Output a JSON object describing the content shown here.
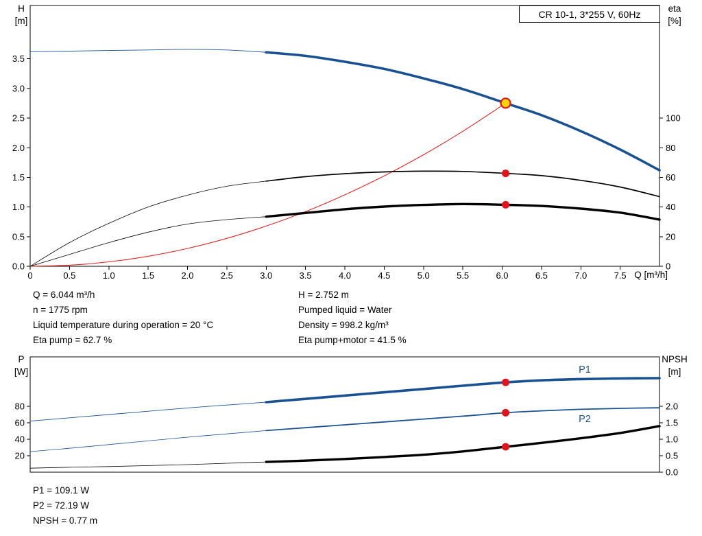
{
  "colors": {
    "blue": "#1a5192",
    "red": "#e02424",
    "black": "#000000",
    "marker_red": "#e3131b",
    "duty_yellow": "#ffd400"
  },
  "info_top": {
    "left": [
      "Q = 6.044 m³/h",
      "n = 1775 rpm",
      "Liquid temperature during operation = 20 °C",
      "Eta pump = 62.7 %"
    ],
    "right": [
      "H = 2.752 m",
      "Pumped liquid = Water",
      "Density = 998.2 kg/m³",
      "Eta pump+motor = 41.5 %"
    ]
  },
  "info_bottom": [
    "P1 = 109.1 W",
    "P2 = 72.19 W",
    "NPSH = 0.77 m"
  ],
  "chart_data": [
    {
      "type": "line",
      "title": "CR 10-1, 3*255 V, 60Hz",
      "x_axis": {
        "label": "Q [m³/h]",
        "range": [
          0,
          8
        ],
        "ticks": [
          "0",
          "0.5",
          "1.0",
          "1.5",
          "2.0",
          "2.5",
          "3.0",
          "3.5",
          "4.0",
          "4.5",
          "5.0",
          "5.5",
          "6.0",
          "6.5",
          "7.0",
          "7.5"
        ]
      },
      "y_left": {
        "name": "H",
        "unit": "[m]",
        "range": [
          0,
          4.4
        ],
        "ticks": [
          "0.0",
          "0.5",
          "1.0",
          "1.5",
          "2.0",
          "2.5",
          "3.0",
          "3.5"
        ]
      },
      "y_right": {
        "name": "eta",
        "unit": "[%]",
        "range": [
          0,
          176
        ],
        "ticks": [
          "0",
          "20",
          "40",
          "60",
          "80",
          "100"
        ]
      },
      "series": [
        {
          "name": "pump-head",
          "axis": "left",
          "color": "#1a5192",
          "thin_until": 3,
          "thin_width": 0.9,
          "width": 3.6,
          "points": [
            [
              0,
              3.62
            ],
            [
              0.5,
              3.63
            ],
            [
              1,
              3.64
            ],
            [
              1.5,
              3.65
            ],
            [
              2,
              3.66
            ],
            [
              2.5,
              3.65
            ],
            [
              3,
              3.61
            ],
            [
              3.5,
              3.55
            ],
            [
              4,
              3.45
            ],
            [
              4.5,
              3.33
            ],
            [
              5,
              3.17
            ],
            [
              5.5,
              2.99
            ],
            [
              6.044,
              2.752
            ],
            [
              6.5,
              2.55
            ],
            [
              7,
              2.28
            ],
            [
              7.5,
              1.97
            ],
            [
              8,
              1.62
            ]
          ]
        },
        {
          "name": "system-curve",
          "axis": "left",
          "color": "#e02424",
          "width": 1.1,
          "points": [
            [
              0,
              0
            ],
            [
              0.5,
              0.019
            ],
            [
              1,
              0.075
            ],
            [
              1.5,
              0.169
            ],
            [
              2,
              0.301
            ],
            [
              2.5,
              0.471
            ],
            [
              3,
              0.678
            ],
            [
              3.5,
              0.922
            ],
            [
              4,
              1.205
            ],
            [
              4.5,
              1.525
            ],
            [
              5,
              1.882
            ],
            [
              5.5,
              2.278
            ],
            [
              6.044,
              2.752
            ]
          ]
        },
        {
          "name": "eta-pump",
          "axis": "right",
          "color": "#000000",
          "thin_until": 3,
          "thin_width": 0.8,
          "width": 1.7,
          "points": [
            [
              0,
              0
            ],
            [
              0.5,
              16
            ],
            [
              1,
              29
            ],
            [
              1.5,
              40
            ],
            [
              2,
              48
            ],
            [
              2.5,
              54
            ],
            [
              3,
              57.5
            ],
            [
              3.5,
              60.5
            ],
            [
              4,
              62.5
            ],
            [
              4.5,
              63.7
            ],
            [
              5,
              64.2
            ],
            [
              5.5,
              64
            ],
            [
              6.044,
              62.7
            ],
            [
              6.5,
              61.2
            ],
            [
              7,
              58
            ],
            [
              7.5,
              53.5
            ],
            [
              8,
              47
            ]
          ]
        },
        {
          "name": "eta-pump-motor",
          "axis": "right",
          "color": "#000000",
          "thin_until": 3,
          "thin_width": 0.8,
          "width": 3.4,
          "points": [
            [
              0,
              0
            ],
            [
              0.5,
              8
            ],
            [
              1,
              16
            ],
            [
              1.5,
              23
            ],
            [
              2,
              28.5
            ],
            [
              2.5,
              31.5
            ],
            [
              3,
              33.5
            ],
            [
              3.5,
              36
            ],
            [
              4,
              38.5
            ],
            [
              4.5,
              40.3
            ],
            [
              5,
              41.4
            ],
            [
              5.5,
              42
            ],
            [
              6.044,
              41.5
            ],
            [
              6.5,
              40.7
            ],
            [
              7,
              38.9
            ],
            [
              7.5,
              36.2
            ],
            [
              8,
              31.5
            ]
          ]
        }
      ],
      "markers": [
        {
          "style": "duty",
          "axis": "left",
          "x": 6.044,
          "y": 2.752
        },
        {
          "style": "dot",
          "axis": "right",
          "x": 6.044,
          "y": 62.7
        },
        {
          "style": "dot",
          "axis": "right",
          "x": 6.044,
          "y": 41.5
        }
      ]
    },
    {
      "type": "line",
      "title": "",
      "x_axis": {
        "label": "",
        "range": [
          0,
          8
        ],
        "ticks": []
      },
      "y_left": {
        "name": "P",
        "unit": "[W]",
        "range": [
          0,
          140
        ],
        "ticks": [
          "20",
          "40",
          "60",
          "80"
        ]
      },
      "y_right": {
        "name": "NPSH",
        "unit": "[m]",
        "range": [
          0,
          3.5
        ],
        "ticks": [
          "0.0",
          "0.5",
          "1.0",
          "1.5",
          "2.0"
        ]
      },
      "series": [
        {
          "name": "p1-power",
          "axis": "left",
          "color": "#1a5192",
          "thin_until": 3,
          "thin_width": 0.9,
          "width": 3.6,
          "points": [
            [
              0,
              62
            ],
            [
              0.5,
              66
            ],
            [
              1,
              70
            ],
            [
              1.5,
              74
            ],
            [
              2,
              78
            ],
            [
              2.5,
              81.5
            ],
            [
              3,
              85
            ],
            [
              3.5,
              89
            ],
            [
              4,
              93
            ],
            [
              4.5,
              97
            ],
            [
              5,
              101
            ],
            [
              5.5,
              105
            ],
            [
              6.044,
              109.1
            ],
            [
              6.5,
              111.5
            ],
            [
              7,
              113
            ],
            [
              7.5,
              113.8
            ],
            [
              8,
              114.2
            ]
          ]
        },
        {
          "name": "p2-power",
          "axis": "left",
          "color": "#1a5192",
          "thin_until": 3,
          "thin_width": 0.8,
          "width": 1.8,
          "points": [
            [
              0,
              25
            ],
            [
              0.5,
              29
            ],
            [
              1,
              33.5
            ],
            [
              1.5,
              38
            ],
            [
              2,
              42.5
            ],
            [
              2.5,
              46.5
            ],
            [
              3,
              50.5
            ],
            [
              3.5,
              54
            ],
            [
              4,
              57.5
            ],
            [
              4.5,
              61
            ],
            [
              5,
              64.5
            ],
            [
              5.5,
              68
            ],
            [
              6.044,
              72.19
            ],
            [
              6.5,
              74.5
            ],
            [
              7,
              76.3
            ],
            [
              7.5,
              77.5
            ],
            [
              8,
              78.2
            ]
          ]
        },
        {
          "name": "npsh",
          "axis": "right",
          "color": "#000000",
          "thin_until": 3,
          "thin_width": 0.8,
          "width": 3.4,
          "points": [
            [
              0,
              0.12
            ],
            [
              0.5,
              0.15
            ],
            [
              1,
              0.17
            ],
            [
              1.5,
              0.2
            ],
            [
              2,
              0.23
            ],
            [
              2.5,
              0.27
            ],
            [
              3,
              0.31
            ],
            [
              3.5,
              0.35
            ],
            [
              4,
              0.4
            ],
            [
              4.5,
              0.46
            ],
            [
              5,
              0.53
            ],
            [
              5.5,
              0.63
            ],
            [
              6.044,
              0.77
            ],
            [
              6.5,
              0.89
            ],
            [
              7,
              1.03
            ],
            [
              7.5,
              1.19
            ],
            [
              8,
              1.4
            ]
          ]
        }
      ],
      "labels": [
        {
          "text": "P1",
          "x": 7.05,
          "y": 124,
          "axis": "left",
          "color": "#1a5192"
        },
        {
          "text": "P2",
          "x": 7.05,
          "y": 64,
          "axis": "left",
          "color": "#1a5192"
        }
      ],
      "markers": [
        {
          "style": "dot",
          "axis": "left",
          "x": 6.044,
          "y": 109.1
        },
        {
          "style": "dot",
          "axis": "left",
          "x": 6.044,
          "y": 72.19
        },
        {
          "style": "dot",
          "axis": "right",
          "x": 6.044,
          "y": 0.77
        }
      ]
    }
  ]
}
